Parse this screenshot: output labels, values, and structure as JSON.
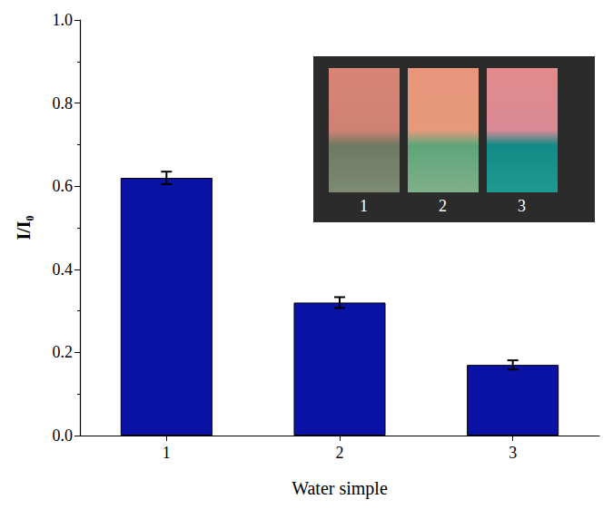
{
  "chart_data": {
    "type": "bar",
    "x_label": "Water simple",
    "y_label": "I/I₀",
    "categories": [
      "1",
      "2",
      "3"
    ],
    "values": [
      0.62,
      0.32,
      0.17
    ],
    "errors": [
      0.015,
      0.013,
      0.011
    ],
    "color": "#0a12a6",
    "ylim": [
      0,
      1
    ],
    "yticks": [
      {
        "value": 0,
        "label": "0.0"
      },
      0.2,
      0.4,
      0.6,
      0.8,
      {
        "value": 1,
        "label": "1.0"
      }
    ],
    "grid": false,
    "inset_labels": [
      "1",
      "2",
      "3"
    ]
  }
}
